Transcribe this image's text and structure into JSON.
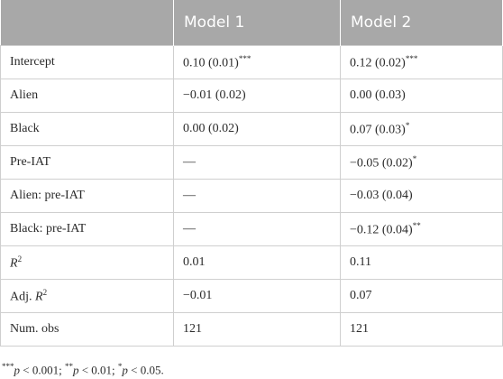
{
  "table": {
    "header": [
      "",
      "Model 1",
      "Model 2"
    ],
    "rows": [
      [
        [
          {
            "text": "Intercept"
          }
        ],
        [
          {
            "text": "0.10 (0.01)"
          },
          {
            "text": "***",
            "style": "sup"
          }
        ],
        [
          {
            "text": "0.12 (0.02)"
          },
          {
            "text": "***",
            "style": "sup"
          }
        ]
      ],
      [
        [
          {
            "text": "Alien"
          }
        ],
        [
          {
            "text": "−0.01 (0.02)"
          }
        ],
        [
          {
            "text": "0.00 (0.03)"
          }
        ]
      ],
      [
        [
          {
            "text": "Black"
          }
        ],
        [
          {
            "text": "0.00 (0.02)"
          }
        ],
        [
          {
            "text": "0.07 (0.03)"
          },
          {
            "text": "*",
            "style": "sup"
          }
        ]
      ],
      [
        [
          {
            "text": "Pre-IAT"
          }
        ],
        [
          {
            "text": "—"
          }
        ],
        [
          {
            "text": "−0.05 (0.02)"
          },
          {
            "text": "*",
            "style": "sup"
          }
        ]
      ],
      [
        [
          {
            "text": "Alien: pre-IAT"
          }
        ],
        [
          {
            "text": "—"
          }
        ],
        [
          {
            "text": "−0.03 (0.04)"
          }
        ]
      ],
      [
        [
          {
            "text": "Black: pre-IAT"
          }
        ],
        [
          {
            "text": "—"
          }
        ],
        [
          {
            "text": "−0.12 (0.04)"
          },
          {
            "text": "**",
            "style": "sup"
          }
        ]
      ],
      [
        [
          {
            "text": "R",
            "style": "i"
          },
          {
            "text": "2",
            "style": "sup"
          }
        ],
        [
          {
            "text": "0.01"
          }
        ],
        [
          {
            "text": "0.11"
          }
        ]
      ],
      [
        [
          {
            "text": "Adj. "
          },
          {
            "text": "R",
            "style": "i"
          },
          {
            "text": "2",
            "style": "sup"
          }
        ],
        [
          {
            "text": "−0.01"
          }
        ],
        [
          {
            "text": "0.07"
          }
        ]
      ],
      [
        [
          {
            "text": "Num. obs"
          }
        ],
        [
          {
            "text": "121"
          }
        ],
        [
          {
            "text": "121"
          }
        ]
      ]
    ]
  },
  "footnote": [
    {
      "text": "***",
      "style": "sup"
    },
    {
      "text": "p",
      "style": "i"
    },
    {
      "text": " < 0.001; "
    },
    {
      "text": "**",
      "style": "sup"
    },
    {
      "text": "p",
      "style": "i"
    },
    {
      "text": " < 0.01; "
    },
    {
      "text": "*",
      "style": "sup"
    },
    {
      "text": "p",
      "style": "i"
    },
    {
      "text": " < 0.05."
    }
  ]
}
